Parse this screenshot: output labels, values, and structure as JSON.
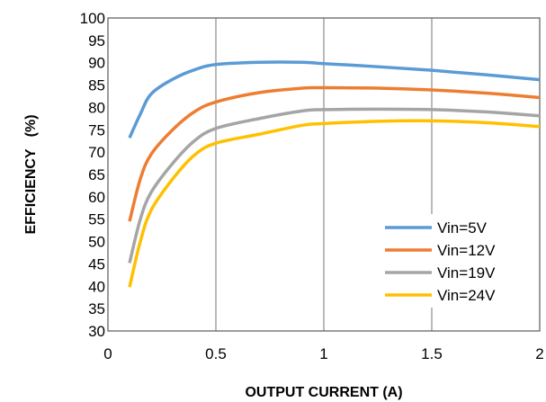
{
  "chart_data": {
    "type": "line",
    "title": "",
    "xlabel": "OUTPUT  CURRENT  (A)",
    "ylabel": "EFFICIENCY   (%)",
    "xlim": [
      0,
      2
    ],
    "ylim": [
      30,
      100
    ],
    "x_ticks": [
      "0",
      "0.5",
      "1",
      "1.5",
      "2"
    ],
    "y_ticks": [
      "30",
      "35",
      "40",
      "45",
      "50",
      "55",
      "60",
      "65",
      "70",
      "75",
      "80",
      "85",
      "90",
      "95",
      "100"
    ],
    "grid": "vertical",
    "legend_position": "bottom-right",
    "series": [
      {
        "name": "Vin=5V",
        "color": "#5b9bd5",
        "points": [
          [
            0.1,
            73.2
          ],
          [
            0.15,
            78.5
          ],
          [
            0.2,
            83.0
          ],
          [
            0.3,
            86.3
          ],
          [
            0.4,
            88.4
          ],
          [
            0.5,
            89.6
          ],
          [
            0.7,
            90.1
          ],
          [
            0.9,
            90.1
          ],
          [
            1.0,
            89.8
          ],
          [
            1.25,
            89.1
          ],
          [
            1.5,
            88.3
          ],
          [
            1.75,
            87.3
          ],
          [
            2.0,
            86.2
          ]
        ]
      },
      {
        "name": "Vin=12V",
        "color": "#ed7d31",
        "points": [
          [
            0.1,
            54.5
          ],
          [
            0.15,
            64.0
          ],
          [
            0.2,
            69.5
          ],
          [
            0.3,
            75.0
          ],
          [
            0.4,
            79.0
          ],
          [
            0.5,
            81.2
          ],
          [
            0.7,
            83.3
          ],
          [
            0.9,
            84.3
          ],
          [
            1.0,
            84.4
          ],
          [
            1.25,
            84.3
          ],
          [
            1.5,
            83.9
          ],
          [
            1.75,
            83.2
          ],
          [
            2.0,
            82.2
          ]
        ]
      },
      {
        "name": "Vin=19V",
        "color": "#a5a5a5",
        "points": [
          [
            0.1,
            45.2
          ],
          [
            0.15,
            55.0
          ],
          [
            0.2,
            61.0
          ],
          [
            0.3,
            67.5
          ],
          [
            0.4,
            72.5
          ],
          [
            0.5,
            75.3
          ],
          [
            0.7,
            77.5
          ],
          [
            0.9,
            79.2
          ],
          [
            1.0,
            79.5
          ],
          [
            1.25,
            79.6
          ],
          [
            1.5,
            79.5
          ],
          [
            1.75,
            79.0
          ],
          [
            2.0,
            78.1
          ]
        ]
      },
      {
        "name": "Vin=24V",
        "color": "#ffc000",
        "points": [
          [
            0.1,
            39.8
          ],
          [
            0.15,
            50.0
          ],
          [
            0.2,
            57.0
          ],
          [
            0.3,
            64.0
          ],
          [
            0.4,
            69.3
          ],
          [
            0.5,
            72.0
          ],
          [
            0.7,
            74.0
          ],
          [
            0.9,
            76.0
          ],
          [
            1.0,
            76.4
          ],
          [
            1.25,
            76.9
          ],
          [
            1.5,
            77.0
          ],
          [
            1.75,
            76.6
          ],
          [
            2.0,
            75.7
          ]
        ]
      }
    ]
  }
}
